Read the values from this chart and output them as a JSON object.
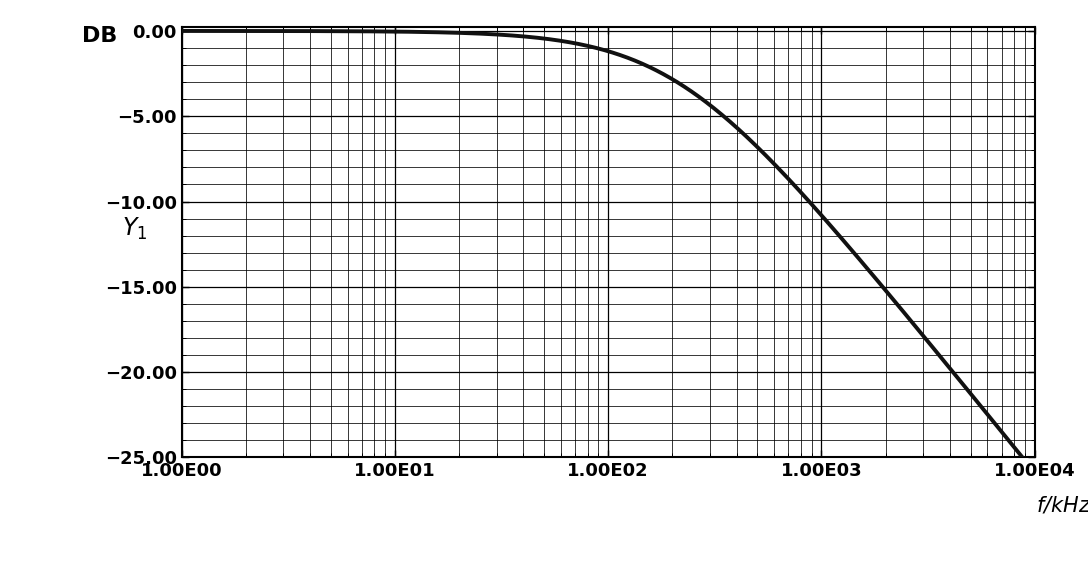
{
  "title": "",
  "ylabel": "$Y_1$",
  "xlabel": "$f$/kHz",
  "db_label": "DB",
  "ylim": [
    -25.0,
    0.25
  ],
  "yticks": [
    0.0,
    -5.0,
    -10.0,
    -15.0,
    -20.0,
    -25.0
  ],
  "ytick_labels": [
    "0.00",
    "−5.00",
    "−10.00",
    "−15.00",
    "−20.00",
    "−25.00"
  ],
  "xtick_labels": [
    "1.00E00",
    "1.00E01",
    "1.00E02",
    "1.00E03",
    "1.00E04"
  ],
  "line_color": "#111111",
  "line_width": 2.8,
  "grid_color": "#000000",
  "grid_major_lw": 0.9,
  "grid_minor_lw": 0.55,
  "background_color": "#ffffff",
  "fc_kHz": 120.0,
  "filter_n": 1.5,
  "font_size_ticks": 13,
  "font_size_labels": 15
}
